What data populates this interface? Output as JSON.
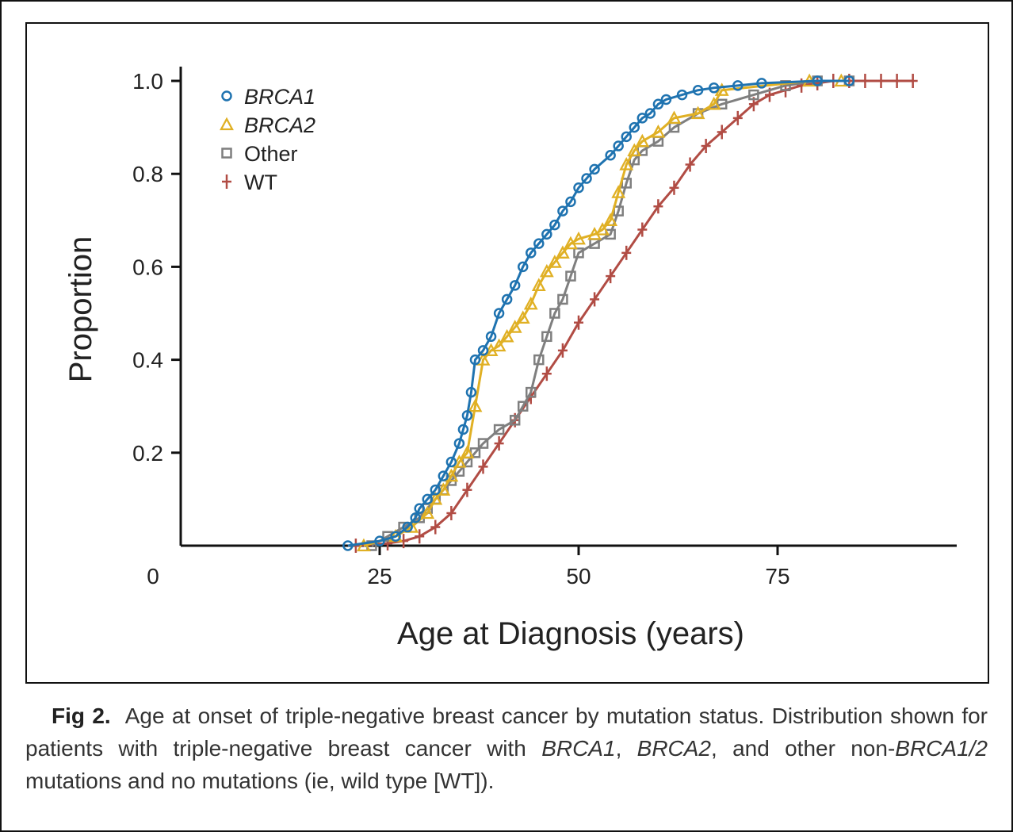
{
  "figure": {
    "label": "Fig 2.",
    "caption_parts": [
      "Age at onset of triple-negative breast cancer by mutation status. Distribution shown for patients with triple-negative breast cancer with ",
      "BRCA1",
      ", ",
      "BRCA2",
      ", and other non-",
      "BRCA1/2",
      " mutations and no mutations (ie, wild type [WT])."
    ]
  },
  "chart_data": {
    "type": "line",
    "title": "",
    "xlabel": "Age at Diagnosis (years)",
    "ylabel": "Proportion",
    "xlim": [
      0,
      93
    ],
    "ylim": [
      0,
      1.0
    ],
    "x_origin_label": "0",
    "xticks": [
      25,
      50,
      75
    ],
    "xtick_labels": [
      "25",
      "50",
      "75"
    ],
    "yticks": [
      0.2,
      0.4,
      0.6,
      0.8,
      1.0
    ],
    "ytick_labels": [
      "0.2",
      "0.4",
      "0.6",
      "0.8",
      "1.0"
    ],
    "grid": false,
    "legend_position": "top-left",
    "series": [
      {
        "name": "BRCA1",
        "italic": true,
        "marker": "circle",
        "color": "#1f73b0",
        "x": [
          21,
          25,
          27,
          28.5,
          29.5,
          30,
          31,
          32,
          33,
          34,
          35,
          35.5,
          36,
          36.5,
          37,
          38,
          39,
          40,
          41,
          42,
          43,
          44,
          45,
          46,
          47,
          48,
          49,
          50,
          51,
          52,
          54,
          55,
          56,
          57,
          58,
          59,
          60,
          61,
          63,
          65,
          67,
          70,
          73,
          80,
          84
        ],
        "y": [
          0,
          0.01,
          0.02,
          0.04,
          0.06,
          0.08,
          0.1,
          0.12,
          0.15,
          0.18,
          0.22,
          0.25,
          0.28,
          0.33,
          0.4,
          0.42,
          0.45,
          0.5,
          0.53,
          0.56,
          0.6,
          0.63,
          0.65,
          0.67,
          0.69,
          0.72,
          0.74,
          0.77,
          0.79,
          0.81,
          0.84,
          0.86,
          0.88,
          0.9,
          0.92,
          0.93,
          0.95,
          0.96,
          0.97,
          0.98,
          0.985,
          0.99,
          0.995,
          1.0,
          1.0
        ]
      },
      {
        "name": "BRCA2",
        "italic": true,
        "marker": "triangle",
        "color": "#e0b024",
        "x": [
          23,
          27,
          29,
          31,
          32,
          33,
          34,
          35,
          36,
          37,
          38,
          39,
          40,
          41,
          42,
          43,
          44,
          45,
          46,
          47,
          48,
          49,
          50,
          52,
          53,
          54,
          55,
          56,
          57,
          58,
          60,
          62,
          65,
          67,
          68,
          79,
          83
        ],
        "y": [
          0,
          0.02,
          0.04,
          0.07,
          0.1,
          0.12,
          0.15,
          0.18,
          0.2,
          0.3,
          0.4,
          0.42,
          0.43,
          0.45,
          0.47,
          0.49,
          0.52,
          0.56,
          0.59,
          0.61,
          0.63,
          0.65,
          0.66,
          0.67,
          0.68,
          0.7,
          0.76,
          0.82,
          0.85,
          0.87,
          0.89,
          0.92,
          0.93,
          0.95,
          0.98,
          1.0,
          1.0
        ]
      },
      {
        "name": "Other",
        "italic": false,
        "marker": "square",
        "color": "#7f7f7f",
        "x": [
          24,
          26,
          28,
          30,
          31,
          32,
          33,
          34,
          35,
          36,
          37,
          38,
          40,
          42,
          43,
          44,
          45,
          46,
          47,
          48,
          49,
          50,
          52,
          54,
          55,
          56,
          57,
          58,
          60,
          62,
          65,
          68,
          72,
          76,
          80,
          84
        ],
        "y": [
          0,
          0.02,
          0.04,
          0.06,
          0.08,
          0.1,
          0.12,
          0.14,
          0.16,
          0.18,
          0.2,
          0.22,
          0.25,
          0.27,
          0.3,
          0.33,
          0.4,
          0.45,
          0.5,
          0.53,
          0.58,
          0.63,
          0.65,
          0.67,
          0.72,
          0.78,
          0.83,
          0.85,
          0.87,
          0.9,
          0.93,
          0.95,
          0.97,
          0.99,
          1.0,
          1.0
        ]
      },
      {
        "name": "WT",
        "italic": false,
        "marker": "plus",
        "color": "#b14c44",
        "x": [
          22,
          26,
          28,
          30,
          32,
          34,
          36,
          38,
          40,
          42,
          44,
          46,
          48,
          50,
          52,
          54,
          56,
          58,
          60,
          62,
          64,
          66,
          68,
          70,
          72,
          74,
          76,
          78,
          80,
          82,
          84,
          86,
          88,
          90,
          92
        ],
        "y": [
          0,
          0.005,
          0.01,
          0.02,
          0.04,
          0.07,
          0.12,
          0.17,
          0.22,
          0.27,
          0.32,
          0.37,
          0.42,
          0.48,
          0.53,
          0.58,
          0.63,
          0.68,
          0.73,
          0.77,
          0.82,
          0.86,
          0.89,
          0.92,
          0.95,
          0.97,
          0.98,
          0.99,
          0.995,
          1.0,
          1.0,
          1.0,
          1.0,
          1.0,
          1.0
        ]
      }
    ]
  }
}
